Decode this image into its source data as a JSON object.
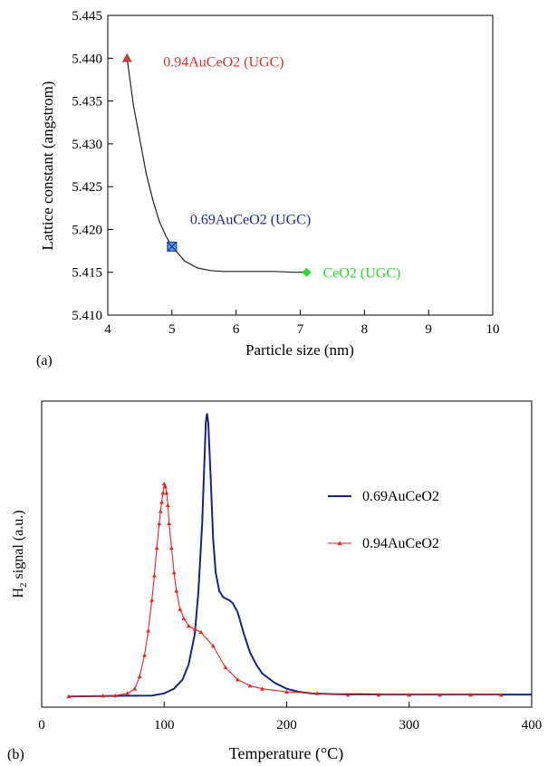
{
  "chart_data": [
    {
      "type": "line",
      "panel_label": "(a)",
      "xlabel": "Particle size (nm)",
      "ylabel": "Lattice constant (angstrom)",
      "xlim": [
        4,
        10
      ],
      "ylim": [
        5.41,
        5.445
      ],
      "xticks": [
        4,
        5,
        6,
        7,
        8,
        9,
        10
      ],
      "yticks": [
        "5.410",
        "5.415",
        "5.420",
        "5.425",
        "5.430",
        "5.435",
        "5.440",
        "5.445"
      ],
      "grid": false,
      "points": [
        {
          "x": 4.3,
          "y": 5.44,
          "label": "0.94AuCeO2 (UGC)",
          "marker": "triangle",
          "color": "#e0322d"
        },
        {
          "x": 5.0,
          "y": 5.418,
          "label": "0.69AuCeO2 (UGC)",
          "marker": "square",
          "color": "#1f2a8c"
        },
        {
          "x": 7.1,
          "y": 5.415,
          "label": "CeO2 (UGC)",
          "marker": "diamond",
          "color": "#2bd92b"
        }
      ],
      "curve": {
        "x": [
          4.3,
          4.4,
          4.5,
          4.6,
          4.7,
          4.8,
          4.9,
          5.0,
          5.2,
          5.4,
          5.6,
          5.8,
          6.0,
          6.3,
          6.6,
          6.9,
          7.1
        ],
        "y": [
          5.44,
          5.4345,
          5.4305,
          5.4265,
          5.4235,
          5.421,
          5.4193,
          5.418,
          5.4163,
          5.4155,
          5.4152,
          5.4151,
          5.4151,
          5.4151,
          5.4151,
          5.415,
          5.415
        ],
        "color": "#222222"
      }
    },
    {
      "type": "line",
      "panel_label": "(b)",
      "xlabel_main": "Temperature (",
      "xlabel_unit": "°C",
      "xlabel_close": ")",
      "ylabel_main": "H",
      "ylabel_sub": "2",
      "ylabel_rest": " signal (a.u.)",
      "xlim": [
        0,
        400
      ],
      "ylim": [
        0,
        1
      ],
      "xticks": [
        0,
        100,
        200,
        300,
        400
      ],
      "legend_position": "right",
      "series": [
        {
          "name": "0.69AuCeO2",
          "color": "#1a237e",
          "marker": "none",
          "x": [
            22,
            60,
            90,
            100,
            108,
            115,
            120,
            125,
            128,
            131,
            133,
            134,
            135,
            136,
            138,
            140,
            142,
            145,
            148,
            150,
            153,
            156,
            160,
            165,
            170,
            175,
            180,
            190,
            200,
            210,
            220,
            240,
            260,
            280,
            300,
            350,
            400
          ],
          "y": [
            0.035,
            0.037,
            0.038,
            0.045,
            0.06,
            0.09,
            0.14,
            0.24,
            0.38,
            0.6,
            0.82,
            0.93,
            0.96,
            0.93,
            0.75,
            0.55,
            0.44,
            0.38,
            0.36,
            0.355,
            0.35,
            0.34,
            0.31,
            0.24,
            0.18,
            0.14,
            0.11,
            0.08,
            0.06,
            0.05,
            0.045,
            0.042,
            0.042,
            0.041,
            0.041,
            0.041,
            0.041
          ]
        },
        {
          "name": "0.94AuCeO2",
          "color": "#e8251f",
          "marker": "triangle",
          "x": [
            22,
            50,
            60,
            70,
            76,
            80,
            84,
            87,
            90,
            92,
            94,
            96,
            97,
            98,
            99,
            100,
            101,
            102,
            103,
            104,
            106,
            108,
            110,
            113,
            116,
            120,
            125,
            130,
            140,
            150,
            160,
            170,
            180,
            200,
            225,
            250,
            275,
            300,
            325,
            350,
            375
          ],
          "y": [
            0.035,
            0.037,
            0.038,
            0.045,
            0.06,
            0.1,
            0.17,
            0.25,
            0.35,
            0.43,
            0.52,
            0.6,
            0.64,
            0.67,
            0.7,
            0.73,
            0.72,
            0.7,
            0.66,
            0.6,
            0.52,
            0.44,
            0.38,
            0.32,
            0.29,
            0.265,
            0.255,
            0.245,
            0.2,
            0.13,
            0.09,
            0.07,
            0.06,
            0.05,
            0.045,
            0.04,
            0.04,
            0.04,
            0.04,
            0.04,
            0.04
          ]
        }
      ]
    }
  ]
}
